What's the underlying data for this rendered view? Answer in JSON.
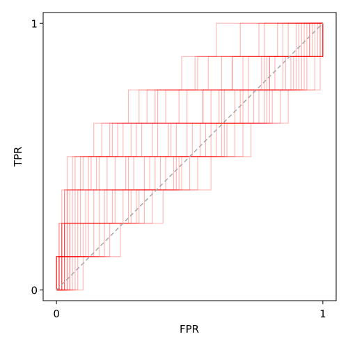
{
  "chart_data": {
    "type": "line",
    "xlabel": "FPR",
    "ylabel": "TPR",
    "xlim": [
      -0.05,
      1.05
    ],
    "ylim": [
      -0.04,
      1.04
    ],
    "x_ticks": [
      {
        "value": 0,
        "label": "0"
      },
      {
        "value": 1,
        "label": "1"
      }
    ],
    "y_ticks": [
      {
        "value": 0,
        "label": "0"
      },
      {
        "value": 1,
        "label": "1"
      }
    ],
    "grid": false,
    "tpr_levels": [
      0,
      0.125,
      0.25,
      0.375,
      0.5,
      0.625,
      0.75,
      0.875,
      1
    ],
    "curve_color": "#ff0000",
    "diagonal_color": "#aaaaaa",
    "series": [
      {
        "x": [
          0.0,
          0.02,
          0.05,
          0.18,
          0.27,
          0.38,
          0.55,
          0.72,
          0.95,
          1.0
        ],
        "y": [
          0.0,
          0.125,
          0.25,
          0.375,
          0.5,
          0.625,
          0.75,
          0.875,
          1.0,
          1.0
        ]
      },
      {
        "x": [
          0.0,
          0.0,
          0.03,
          0.08,
          0.22,
          0.45,
          0.63,
          0.78,
          0.9,
          1.0
        ],
        "y": [
          0.0,
          0.125,
          0.25,
          0.375,
          0.5,
          0.625,
          0.75,
          0.875,
          1.0,
          1.0
        ]
      },
      {
        "x": [
          0.0,
          0.01,
          0.02,
          0.04,
          0.16,
          0.36,
          0.58,
          0.8,
          0.99,
          1.0
        ],
        "y": [
          0.0,
          0.125,
          0.25,
          0.375,
          0.5,
          0.625,
          0.75,
          0.875,
          1.0,
          1.0
        ]
      },
      {
        "x": [
          0.0,
          0.03,
          0.1,
          0.25,
          0.41,
          0.6,
          0.74,
          0.88,
          0.98,
          1.0
        ],
        "y": [
          0.0,
          0.125,
          0.25,
          0.375,
          0.5,
          0.625,
          0.75,
          0.875,
          1.0,
          1.0
        ]
      },
      {
        "x": [
          0.0,
          0.0,
          0.01,
          0.03,
          0.04,
          0.14,
          0.27,
          0.53,
          0.76,
          1.0
        ],
        "y": [
          0.0,
          0.125,
          0.25,
          0.375,
          0.5,
          0.625,
          0.75,
          0.875,
          1.0,
          1.0
        ]
      },
      {
        "x": [
          0.0,
          0.05,
          0.12,
          0.31,
          0.47,
          0.67,
          0.81,
          0.93,
          1.0,
          1.0
        ],
        "y": [
          0.0,
          0.125,
          0.25,
          0.375,
          0.5,
          0.625,
          0.75,
          0.875,
          1.0,
          1.0
        ]
      },
      {
        "x": [
          0.0,
          0.01,
          0.04,
          0.11,
          0.19,
          0.3,
          0.49,
          0.66,
          0.85,
          1.0
        ],
        "y": [
          0.0,
          0.125,
          0.25,
          0.375,
          0.5,
          0.625,
          0.75,
          0.875,
          1.0,
          1.0
        ]
      },
      {
        "x": [
          0.0,
          0.02,
          0.03,
          0.06,
          0.12,
          0.25,
          0.38,
          0.7,
          0.91,
          1.0
        ],
        "y": [
          0.0,
          0.125,
          0.25,
          0.375,
          0.5,
          0.625,
          0.75,
          0.875,
          1.0,
          1.0
        ]
      },
      {
        "x": [
          0.0,
          0.08,
          0.2,
          0.36,
          0.53,
          0.7,
          0.84,
          0.97,
          1.0,
          1.0
        ],
        "y": [
          0.0,
          0.125,
          0.25,
          0.375,
          0.5,
          0.625,
          0.75,
          0.875,
          1.0,
          1.0
        ]
      },
      {
        "x": [
          0.0,
          0.0,
          0.02,
          0.03,
          0.07,
          0.2,
          0.34,
          0.52,
          0.69,
          1.0
        ],
        "y": [
          0.0,
          0.125,
          0.25,
          0.375,
          0.5,
          0.625,
          0.75,
          0.875,
          1.0,
          1.0
        ]
      },
      {
        "x": [
          0.0,
          0.04,
          0.08,
          0.16,
          0.33,
          0.51,
          0.69,
          0.86,
          0.95,
          1.0
        ],
        "y": [
          0.0,
          0.125,
          0.25,
          0.375,
          0.5,
          0.625,
          0.75,
          0.875,
          1.0,
          1.0
        ]
      },
      {
        "x": [
          0.0,
          0.01,
          0.06,
          0.22,
          0.39,
          0.56,
          0.72,
          0.89,
          1.0,
          1.0
        ],
        "y": [
          0.0,
          0.125,
          0.25,
          0.375,
          0.5,
          0.625,
          0.75,
          0.875,
          1.0,
          1.0
        ]
      },
      {
        "x": [
          0.0,
          0.02,
          0.03,
          0.09,
          0.15,
          0.32,
          0.55,
          0.77,
          0.94,
          1.0
        ],
        "y": [
          0.0,
          0.125,
          0.25,
          0.375,
          0.5,
          0.625,
          0.75,
          0.875,
          1.0,
          1.0
        ]
      },
      {
        "x": [
          0.0,
          0.0,
          0.05,
          0.14,
          0.29,
          0.42,
          0.61,
          0.79,
          0.96,
          1.0
        ],
        "y": [
          0.0,
          0.125,
          0.25,
          0.375,
          0.5,
          0.625,
          0.75,
          0.875,
          1.0,
          1.0
        ]
      },
      {
        "x": [
          0.0,
          0.06,
          0.16,
          0.28,
          0.44,
          0.58,
          0.76,
          0.9,
          1.0,
          1.0
        ],
        "y": [
          0.0,
          0.125,
          0.25,
          0.375,
          0.5,
          0.625,
          0.75,
          0.875,
          1.0,
          1.0
        ]
      },
      {
        "x": [
          0.0,
          0.01,
          0.02,
          0.05,
          0.1,
          0.23,
          0.41,
          0.62,
          0.83,
          1.0
        ],
        "y": [
          0.0,
          0.125,
          0.25,
          0.375,
          0.5,
          0.625,
          0.75,
          0.875,
          1.0,
          1.0
        ]
      },
      {
        "x": [
          0.0,
          0.03,
          0.07,
          0.19,
          0.35,
          0.49,
          0.67,
          0.82,
          0.97,
          1.0
        ],
        "y": [
          0.0,
          0.125,
          0.25,
          0.375,
          0.5,
          0.625,
          0.75,
          0.875,
          1.0,
          1.0
        ]
      },
      {
        "x": [
          0.0,
          0.1,
          0.24,
          0.4,
          0.58,
          0.73,
          0.87,
          0.99,
          1.0,
          1.0
        ],
        "y": [
          0.0,
          0.125,
          0.25,
          0.375,
          0.5,
          0.625,
          0.75,
          0.875,
          1.0,
          1.0
        ]
      },
      {
        "x": [
          0.0,
          0.0,
          0.01,
          0.02,
          0.06,
          0.17,
          0.31,
          0.47,
          0.6,
          1.0
        ],
        "y": [
          0.0,
          0.125,
          0.25,
          0.375,
          0.5,
          0.625,
          0.75,
          0.875,
          1.0,
          1.0
        ]
      },
      {
        "x": [
          0.0,
          0.04,
          0.09,
          0.21,
          0.37,
          0.54,
          0.7,
          0.85,
          0.93,
          1.0
        ],
        "y": [
          0.0,
          0.125,
          0.25,
          0.375,
          0.5,
          0.625,
          0.75,
          0.875,
          1.0,
          1.0
        ]
      },
      {
        "x": [
          0.0,
          0.02,
          0.04,
          0.12,
          0.26,
          0.43,
          0.62,
          0.8,
          0.92,
          1.0
        ],
        "y": [
          0.0,
          0.125,
          0.25,
          0.375,
          0.5,
          0.625,
          0.75,
          0.875,
          1.0,
          1.0
        ]
      },
      {
        "x": [
          0.0,
          0.01,
          0.03,
          0.07,
          0.13,
          0.28,
          0.46,
          0.66,
          0.87,
          1.0
        ],
        "y": [
          0.0,
          0.125,
          0.25,
          0.375,
          0.5,
          0.625,
          0.75,
          0.875,
          1.0,
          1.0
        ]
      },
      {
        "x": [
          0.0,
          0.07,
          0.18,
          0.33,
          0.5,
          0.64,
          0.8,
          0.94,
          1.0,
          1.0
        ],
        "y": [
          0.0,
          0.125,
          0.25,
          0.375,
          0.5,
          0.625,
          0.75,
          0.875,
          1.0,
          1.0
        ]
      },
      {
        "x": [
          0.0,
          0.0,
          0.02,
          0.04,
          0.09,
          0.21,
          0.37,
          0.57,
          0.78,
          1.0
        ],
        "y": [
          0.0,
          0.125,
          0.25,
          0.375,
          0.5,
          0.625,
          0.75,
          0.875,
          1.0,
          1.0
        ]
      },
      {
        "x": [
          0.0,
          0.03,
          0.11,
          0.27,
          0.45,
          0.62,
          0.78,
          0.91,
          0.99,
          1.0
        ],
        "y": [
          0.0,
          0.125,
          0.25,
          0.375,
          0.5,
          0.625,
          0.75,
          0.875,
          1.0,
          1.0
        ]
      },
      {
        "x": [
          0.0,
          0.05,
          0.14,
          0.3,
          0.46,
          0.63,
          0.79,
          0.92,
          1.0,
          1.0
        ],
        "y": [
          0.0,
          0.125,
          0.25,
          0.375,
          0.5,
          0.625,
          0.75,
          0.875,
          1.0,
          1.0
        ]
      }
    ]
  }
}
